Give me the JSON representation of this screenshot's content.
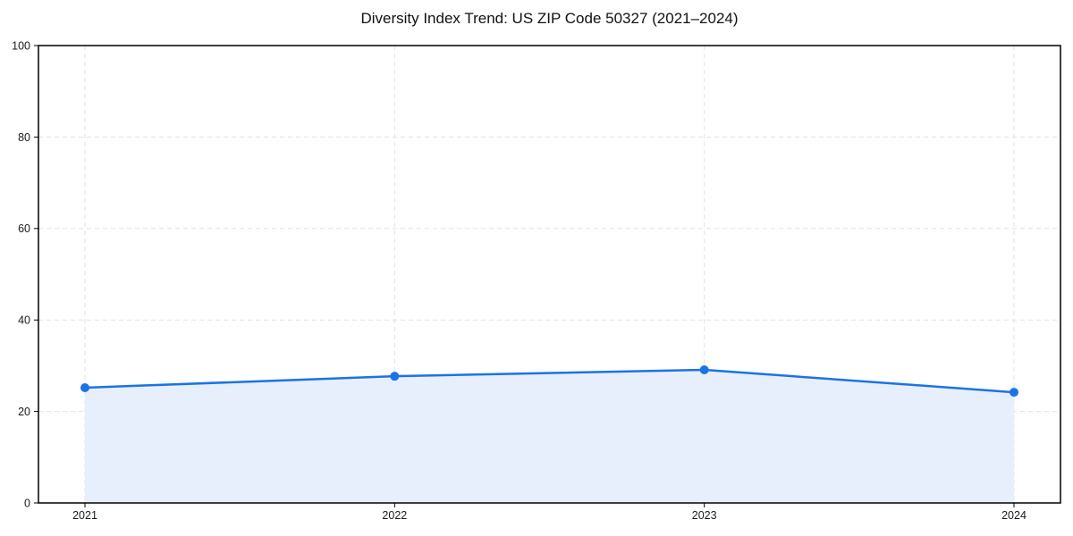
{
  "chart_data": {
    "type": "line",
    "title": "Diversity Index Trend: US ZIP Code 50327 (2021–2024)",
    "categories": [
      "2021",
      "2022",
      "2023",
      "2024"
    ],
    "values": [
      25.2,
      27.7,
      29.1,
      24.2
    ],
    "xlabel": "",
    "ylabel": "",
    "ylim": [
      0,
      100
    ],
    "yticks": [
      0,
      20,
      40,
      60,
      80,
      100
    ],
    "grid": true,
    "grid_style": "dashed",
    "legend_position": "none",
    "colors": {
      "line": "#1a73e8",
      "marker": "#1a73e8",
      "area_fill": "#e8effc",
      "grid": "#e2e2e2",
      "spine": "#000000",
      "tick_text": "#1a1a1a",
      "background": "#ffffff"
    }
  }
}
